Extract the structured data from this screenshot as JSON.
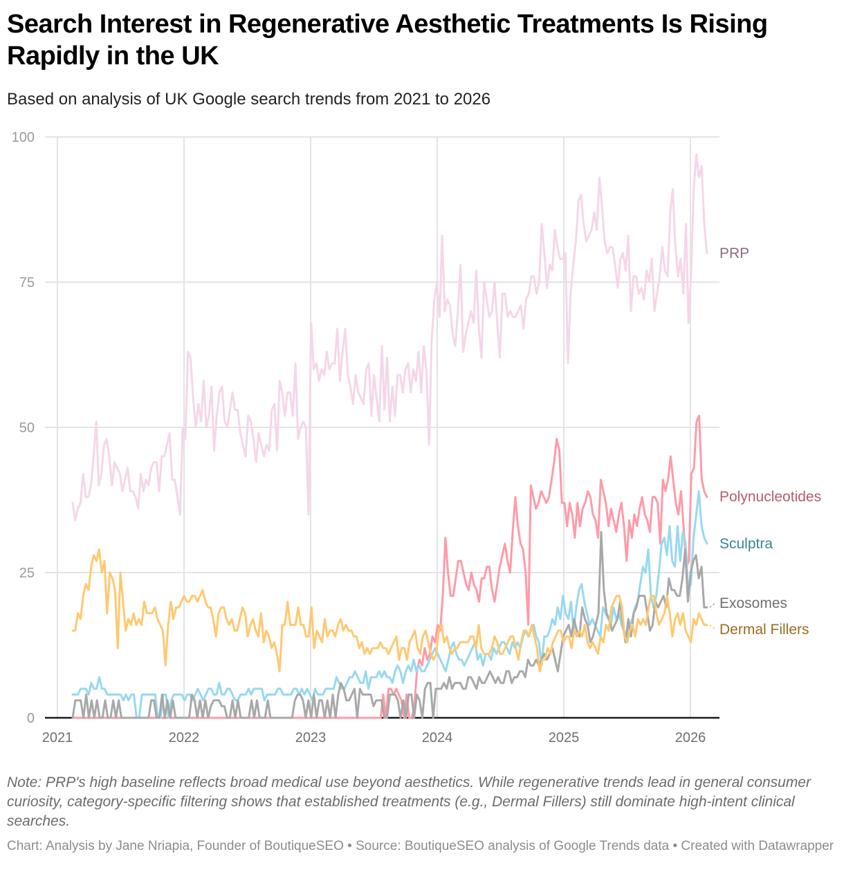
{
  "header": {
    "title": "Search Interest in Regenerative Aesthetic Treatments Is Rising Rapidly in the UK",
    "subtitle": "Based on analysis of UK Google search trends from 2021 to 2026"
  },
  "footer": {
    "note": "Note: PRP's high baseline reflects broad medical use beyond aesthetics. While regenerative trends lead in general consumer curiosity, category-specific filtering shows that established treatments (e.g., Dermal Fillers) still dominate high-intent clinical searches.",
    "credit": "Chart: Analysis by Jane Nriapia, Founder of BoutiqueSEO • Source: BoutiqueSEO analysis of Google Trends data • Created with Datawrapper"
  },
  "chart_data": {
    "type": "line",
    "title": "Search Interest in Regenerative Aesthetic Treatments Is Rising Rapidly in the UK",
    "subtitle": "Based on analysis of UK Google search trends from 2021 to 2026",
    "xlabel": "",
    "ylabel": "",
    "x_start": 2021.12,
    "x_end": 2026.13,
    "xlim": [
      2021,
      2026.25
    ],
    "ylim": [
      0,
      100
    ],
    "x_ticks": [
      2021,
      2022,
      2023,
      2024,
      2025,
      2026
    ],
    "x_tick_labels": [
      "2021",
      "2022",
      "2023",
      "2024",
      "2025",
      "2026"
    ],
    "y_ticks": [
      0,
      25,
      50,
      75,
      100
    ],
    "y_tick_labels": [
      "0",
      "25",
      "50",
      "75",
      "100"
    ],
    "grid": true,
    "legend": "direct labels at right end of lines",
    "series": [
      {
        "name": "PRP",
        "color": "#f5d6e8",
        "label_color": "#8f6b82",
        "values": [
          37,
          34,
          36,
          37,
          42,
          38,
          38,
          40,
          45,
          51,
          40,
          42,
          47,
          48,
          45,
          40,
          44,
          43,
          42,
          39,
          41,
          43,
          39,
          39,
          38,
          36,
          42,
          39,
          41,
          40,
          43,
          44,
          44,
          39,
          45,
          45,
          47,
          49,
          41,
          41,
          38,
          35,
          50,
          48,
          63,
          62,
          55,
          50,
          54,
          51,
          58,
          50,
          52,
          57,
          46,
          52,
          56,
          57,
          51,
          50,
          53,
          56,
          53,
          53,
          49,
          47,
          45,
          52,
          51,
          48,
          44,
          49,
          47,
          45,
          47,
          46,
          53,
          54,
          46,
          58,
          56,
          52,
          56,
          56,
          52,
          61,
          48,
          50,
          51,
          50,
          35,
          68,
          60,
          61,
          58,
          60,
          59,
          63,
          60,
          61,
          61,
          67,
          58,
          63,
          67,
          59,
          57,
          54,
          59,
          56,
          55,
          54,
          60,
          61,
          52,
          59,
          55,
          51,
          64,
          53,
          62,
          51,
          57,
          52,
          59,
          59,
          56,
          60,
          61,
          56,
          60,
          58,
          63,
          56,
          64,
          60,
          47,
          65,
          72,
          75,
          69,
          83,
          70,
          72,
          71,
          66,
          64,
          70,
          78,
          63,
          66,
          68,
          70,
          68,
          77,
          67,
          62,
          75,
          72,
          69,
          70,
          75,
          68,
          62,
          73,
          73,
          69,
          70,
          69,
          69,
          70,
          71,
          67,
          72,
          73,
          76,
          76,
          73,
          75,
          85,
          80,
          74,
          78,
          77,
          84,
          81,
          79,
          79,
          80,
          61,
          73,
          78,
          82,
          89,
          90,
          85,
          82,
          83,
          84,
          87,
          84,
          93,
          88,
          82,
          80,
          81,
          81,
          78,
          74,
          79,
          80,
          77,
          83,
          70,
          76,
          76,
          73,
          74,
          72,
          77,
          75,
          79,
          70,
          73,
          76,
          81,
          77,
          76,
          87,
          91,
          81,
          76,
          79,
          73,
          85,
          68,
          77,
          91,
          97,
          93,
          95,
          85,
          80
        ],
        "end_label": "PRP"
      },
      {
        "name": "Polynucleotides",
        "color": "#ff9aa8",
        "label_color": "#b85b6d",
        "values": [
          0,
          0,
          0,
          0,
          0,
          0,
          0,
          0,
          0,
          0,
          0,
          0,
          0,
          0,
          0,
          0,
          0,
          0,
          0,
          0,
          0,
          0,
          0,
          0,
          0,
          0,
          0,
          0,
          0,
          0,
          0,
          0,
          0,
          0,
          0,
          0,
          0,
          0,
          0,
          0,
          0,
          0,
          0,
          0,
          0,
          0,
          0,
          0,
          0,
          0,
          0,
          0,
          0,
          0,
          0,
          0,
          0,
          0,
          0,
          0,
          0,
          0,
          0,
          0,
          0,
          0,
          0,
          0,
          0,
          0,
          0,
          0,
          0,
          0,
          0,
          0,
          0,
          0,
          0,
          0,
          0,
          0,
          0,
          0,
          0,
          0,
          0,
          0,
          0,
          0,
          0,
          0,
          0,
          0,
          0,
          0,
          0,
          0,
          0,
          0,
          0,
          0,
          0,
          0,
          0,
          0,
          0,
          0,
          0,
          0,
          0,
          0,
          0,
          0,
          0,
          0,
          0,
          0,
          0,
          0,
          4,
          0,
          5,
          5,
          4,
          5,
          4,
          3,
          0,
          4,
          0,
          0,
          2,
          8,
          10,
          9,
          12,
          10,
          11,
          14,
          13,
          16,
          15,
          21,
          31,
          25,
          21,
          21,
          24,
          27,
          27,
          25,
          23,
          22,
          25,
          23,
          22,
          20,
          24,
          24,
          26,
          26,
          22,
          20,
          23,
          26,
          28,
          30,
          27,
          25,
          32,
          38,
          33,
          30,
          29,
          25,
          16,
          40,
          38,
          36,
          37,
          39,
          38,
          37,
          38,
          41,
          44,
          48,
          46,
          37,
          37,
          33,
          37,
          35,
          31,
          37,
          33,
          36,
          37,
          39,
          38,
          35,
          34,
          31,
          41,
          39,
          37,
          33,
          36,
          34,
          32,
          35,
          37,
          33,
          27,
          34,
          31,
          35,
          33,
          36,
          38,
          35,
          34,
          32,
          38,
          38,
          37,
          30,
          41,
          39,
          41,
          45,
          41,
          37,
          35,
          39,
          33,
          26,
          27,
          42,
          43,
          51,
          52,
          41,
          39,
          38
        ],
        "end_label": "Polynucleotides"
      },
      {
        "name": "Sculptra",
        "color": "#97d8f0",
        "label_color": "#3b8394",
        "values": [
          4,
          4,
          4,
          5,
          5,
          5,
          4,
          6,
          5,
          5,
          7,
          5,
          5,
          4,
          4,
          4,
          4,
          4,
          4,
          3,
          4,
          3,
          4,
          4,
          0,
          0,
          4,
          4,
          4,
          4,
          4,
          4,
          0,
          0,
          4,
          4,
          0,
          3,
          4,
          4,
          4,
          4,
          3,
          4,
          4,
          3,
          4,
          5,
          4,
          3,
          4,
          5,
          5,
          4,
          4,
          6,
          4,
          4,
          5,
          5,
          4,
          3,
          3,
          4,
          4,
          4,
          5,
          4,
          5,
          5,
          5,
          5,
          3,
          4,
          4,
          4,
          4,
          5,
          5,
          4,
          4,
          4,
          4,
          5,
          5,
          4,
          5,
          4,
          5,
          4,
          3,
          5,
          4,
          4,
          4,
          5,
          5,
          5,
          5,
          7,
          6,
          5,
          5,
          6,
          7,
          7,
          8,
          7,
          6,
          6,
          8,
          5,
          7,
          7,
          7,
          8,
          7,
          8,
          7,
          7,
          6,
          8,
          9,
          8,
          6,
          8,
          9,
          8,
          10,
          8,
          9,
          8,
          8,
          9,
          10,
          11,
          12,
          11,
          10,
          9,
          8,
          10,
          12,
          13,
          11,
          10,
          10,
          9,
          10,
          11,
          12,
          13,
          10,
          11,
          9,
          11,
          11,
          10,
          12,
          11,
          12,
          13,
          13,
          12,
          11,
          13,
          12,
          13,
          12,
          14,
          15,
          14,
          15,
          16,
          14,
          13,
          9,
          14,
          14,
          15,
          17,
          16,
          19,
          17,
          21,
          18,
          17,
          20,
          15,
          19,
          22,
          23,
          20,
          18,
          16,
          17,
          16,
          15,
          14,
          19,
          18,
          17,
          16,
          19,
          17,
          18,
          16,
          15,
          13,
          16,
          17,
          19,
          20,
          23,
          26,
          25,
          29,
          21,
          19,
          21,
          25,
          30,
          31,
          28,
          33,
          27,
          26,
          33,
          27,
          32,
          30,
          22,
          23,
          31,
          35,
          39,
          33,
          31,
          30
        ],
        "end_label": "Sculptra"
      },
      {
        "name": "Exosomes",
        "color": "#a8a8a8",
        "label_color": "#6e6e6e",
        "values": [
          0,
          3,
          3,
          3,
          0,
          4,
          0,
          3,
          0,
          3,
          0,
          0,
          3,
          0,
          0,
          3,
          0,
          3,
          0,
          0,
          0,
          0,
          0,
          0,
          0,
          0,
          0,
          0,
          0,
          3,
          3,
          0,
          0,
          4,
          0,
          3,
          0,
          3,
          0,
          0,
          0,
          0,
          0,
          0,
          4,
          3,
          0,
          3,
          0,
          3,
          0,
          2,
          3,
          3,
          3,
          2,
          2,
          0,
          0,
          3,
          0,
          3,
          0,
          0,
          0,
          0,
          3,
          0,
          3,
          0,
          0,
          0,
          3,
          0,
          0,
          0,
          0,
          0,
          0,
          0,
          0,
          0,
          3,
          4,
          4,
          3,
          0,
          3,
          0,
          4,
          0,
          3,
          3,
          0,
          3,
          0,
          4,
          0,
          4,
          6,
          5,
          3,
          3,
          4,
          5,
          0,
          5,
          4,
          4,
          4,
          4,
          2,
          3,
          3,
          3,
          0,
          0,
          4,
          4,
          4,
          3,
          0,
          3,
          0,
          4,
          4,
          0,
          4,
          3,
          0,
          5,
          6,
          6,
          0,
          5,
          5,
          5,
          6,
          5,
          7,
          5,
          6,
          6,
          6,
          5,
          5,
          7,
          7,
          6,
          5,
          7,
          6,
          6,
          7,
          8,
          7,
          6,
          7,
          6,
          6,
          8,
          8,
          6,
          7,
          7,
          8,
          8,
          7,
          10,
          9,
          9,
          10,
          9,
          10,
          11,
          10,
          11,
          12,
          10,
          8,
          11,
          14,
          15,
          16,
          14,
          17,
          15,
          14,
          19,
          17,
          16,
          13,
          14,
          16,
          18,
          32,
          22,
          18,
          17,
          15,
          16,
          17,
          20,
          16,
          13,
          17,
          14,
          18,
          19,
          21,
          21,
          21,
          18,
          15,
          16,
          20,
          19,
          20,
          21,
          19,
          24,
          22,
          22,
          21,
          21,
          24,
          29,
          20,
          25,
          27,
          28,
          24,
          26,
          19,
          19
        ],
        "end_label": "Exosomes"
      },
      {
        "name": "Dermal Fillers",
        "color": "#ffc870",
        "label_color": "#9c6b1f",
        "values": [
          15,
          15,
          18,
          17,
          21,
          23,
          22,
          26,
          28,
          27,
          29,
          25,
          27,
          18,
          25,
          24,
          22,
          12,
          25,
          20,
          15,
          17,
          16,
          18,
          16,
          17,
          16,
          20,
          18,
          18,
          18,
          19,
          17,
          16,
          15,
          9,
          16,
          20,
          17,
          19,
          19,
          20,
          21,
          20,
          20,
          21,
          21,
          20,
          21,
          22,
          20,
          19,
          19,
          17,
          14,
          18,
          19,
          19,
          17,
          16,
          17,
          15,
          15,
          17,
          19,
          18,
          14,
          16,
          17,
          15,
          14,
          18,
          13,
          15,
          14,
          12,
          13,
          11,
          8,
          16,
          16,
          20,
          16,
          16,
          16,
          19,
          16,
          16,
          14,
          14,
          19,
          12,
          15,
          14,
          13,
          17,
          14,
          15,
          15,
          14,
          16,
          17,
          15,
          16,
          15,
          15,
          14,
          14,
          12,
          13,
          11,
          12,
          11,
          12,
          12,
          12,
          13,
          12,
          12,
          11,
          12,
          13,
          14,
          10,
          12,
          12,
          10,
          13,
          14,
          15,
          12,
          11,
          14,
          15,
          13,
          11,
          10,
          11,
          15,
          16,
          13,
          14,
          12,
          11,
          12,
          12,
          13,
          13,
          13,
          13,
          14,
          14,
          12,
          16,
          12,
          11,
          11,
          11,
          12,
          14,
          13,
          11,
          11,
          12,
          13,
          14,
          14,
          12,
          10,
          13,
          15,
          15,
          14,
          16,
          14,
          12,
          8,
          10,
          10,
          12,
          11,
          13,
          14,
          15,
          15,
          13,
          14,
          14,
          12,
          15,
          14,
          15,
          14,
          16,
          13,
          12,
          13,
          12,
          11,
          14,
          13,
          16,
          15,
          19,
          20,
          21,
          21,
          19,
          14,
          13,
          15,
          16,
          14,
          17,
          16,
          17,
          16,
          19,
          21,
          21,
          18,
          16,
          17,
          18,
          21,
          18,
          14,
          17,
          18,
          16,
          18,
          15,
          14,
          13,
          17,
          16,
          18,
          17,
          16,
          16
        ],
        "end_label": "Dermal Fillers"
      }
    ]
  }
}
